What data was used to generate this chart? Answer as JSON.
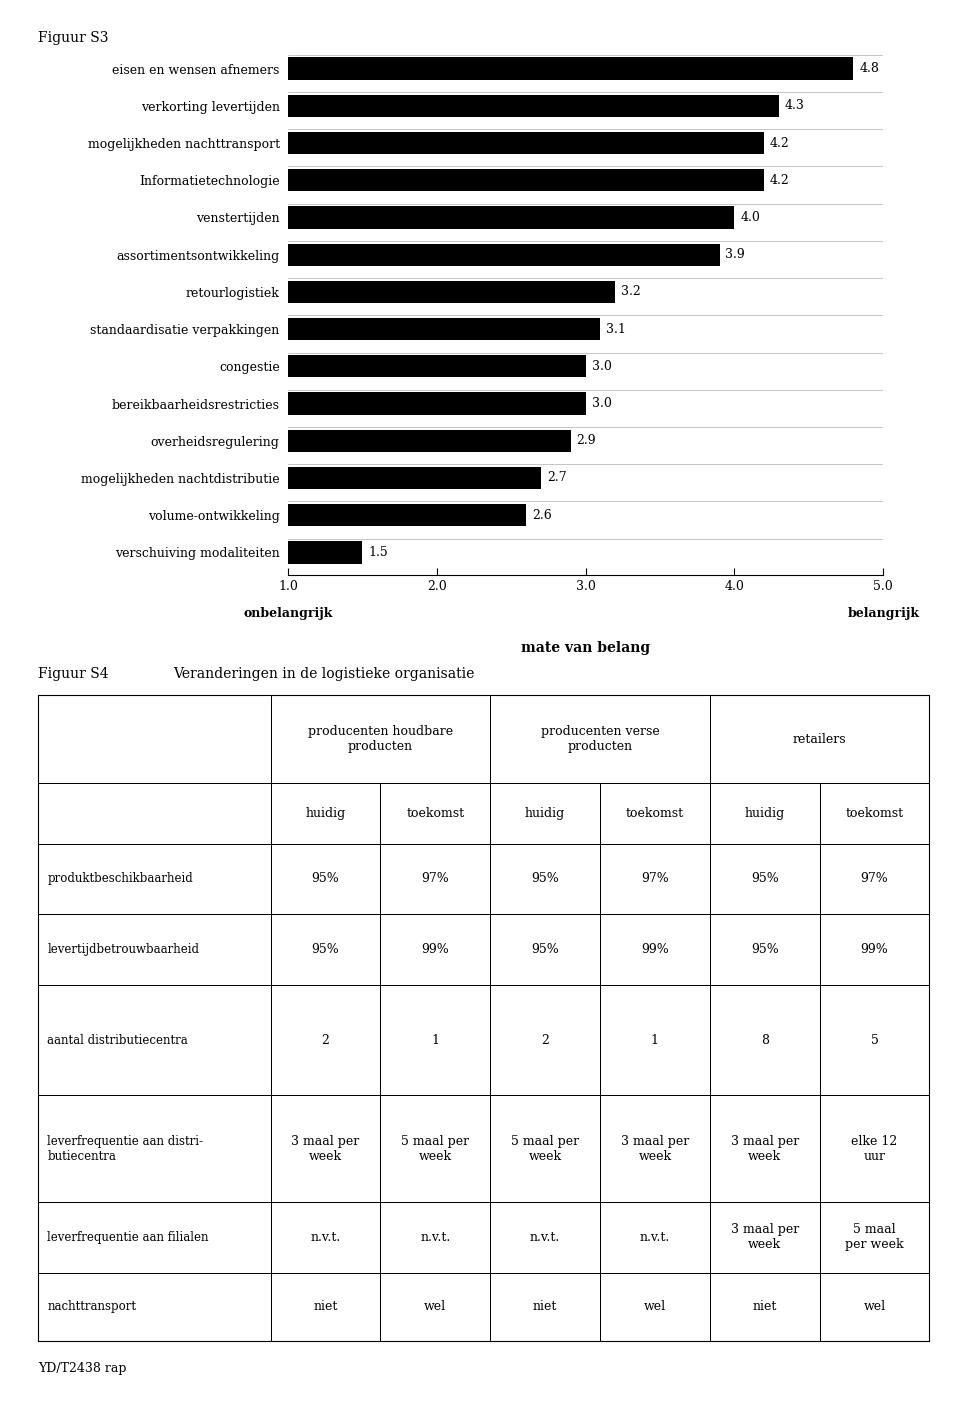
{
  "fig_s3_title": "Figuur S3",
  "bar_categories": [
    "eisen en wensen afnemers",
    "verkorting levertijden",
    "mogelijkheden nachttransport",
    "Informatietechnologie",
    "venstertijden",
    "assortimentsontwikkeling",
    "retourlogistiek",
    "standaardisatie verpakkingen",
    "congestie",
    "bereikbaarheidsrestricties",
    "overheidsregulering",
    "mogelijkheden nachtdistributie",
    "volume-ontwikkeling",
    "verschuiving modaliteiten"
  ],
  "bar_values": [
    4.8,
    4.3,
    4.2,
    4.2,
    4.0,
    3.9,
    3.2,
    3.1,
    3.0,
    3.0,
    2.9,
    2.7,
    2.6,
    1.5
  ],
  "bar_color": "#000000",
  "xlim": [
    1.0,
    5.0
  ],
  "xticks": [
    1.0,
    2.0,
    3.0,
    4.0,
    5.0
  ],
  "xlabel_left": "onbelangrijk",
  "xlabel_right": "belangrijk",
  "xlabel_center": "mate van belang",
  "fig_s4_title": "Figuur S4",
  "fig_s4_subtitle": "Veranderingen in de logistieke organisatie",
  "table_rows": [
    [
      "produktbeschikbaarheid",
      "95%",
      "97%",
      "95%",
      "97%",
      "95%",
      "97%"
    ],
    [
      "levertijdbetrouwbaarheid",
      "95%",
      "99%",
      "95%",
      "99%",
      "95%",
      "99%"
    ],
    [
      "aantal distributiecentra",
      "2",
      "1",
      "2",
      "1",
      "8",
      "5"
    ],
    [
      "leverfrequentie aan distri-\nbutiecentra",
      "3 maal per\nweek",
      "5 maal per\nweek",
      "5 maal per\nweek",
      "3 maal per\nweek",
      "3 maal per\nweek",
      "elke 12\nuur"
    ],
    [
      "leverfrequentie aan filialen",
      "n.v.t.",
      "n.v.t.",
      "n.v.t.",
      "n.v.t.",
      "3 maal per\nweek",
      "5 maal\nper week"
    ],
    [
      "nachttransport",
      "niet",
      "wel",
      "niet",
      "wel",
      "niet",
      "wel"
    ]
  ],
  "footer_text": "YD/T2438 rap",
  "background_color": "#ffffff",
  "text_color": "#000000"
}
